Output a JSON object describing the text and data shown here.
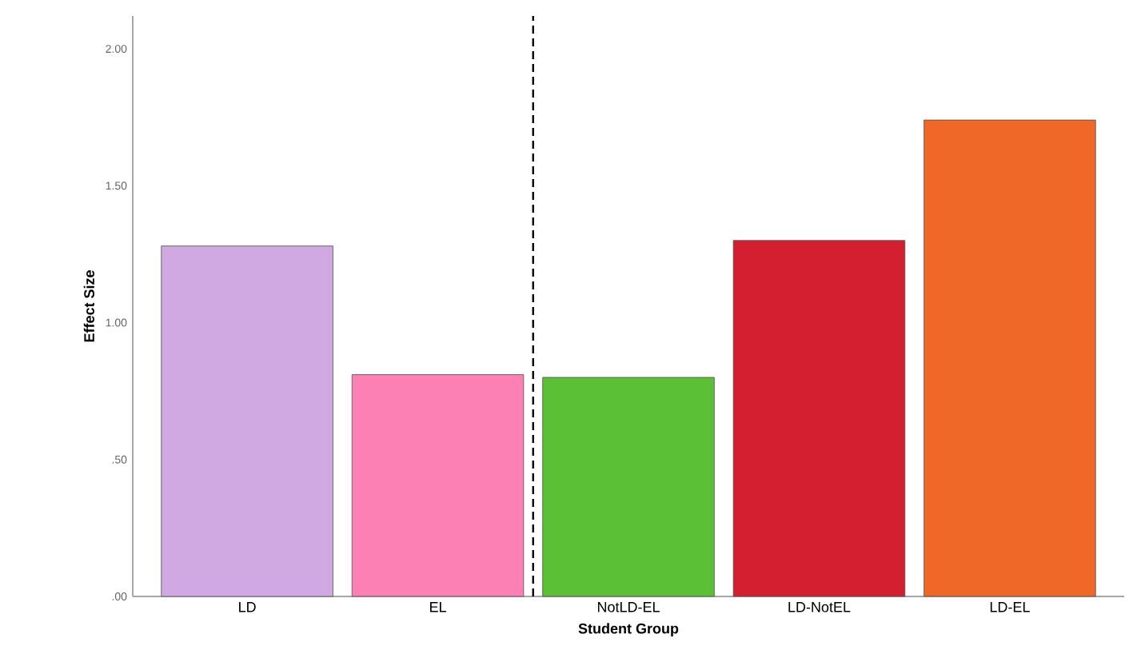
{
  "chart_data": {
    "type": "bar",
    "xlabel": "Student Group",
    "ylabel": "Effect Size",
    "categories": [
      "LD",
      "EL",
      "NotLD-EL",
      "LD-NotEL",
      "LD-EL"
    ],
    "values": [
      1.28,
      0.81,
      0.8,
      1.3,
      1.74
    ],
    "colors": [
      "#d0a9e3",
      "#fc80b4",
      "#5cc036",
      "#d41f31",
      "#f06828"
    ],
    "ylim": [
      0,
      2.12
    ],
    "yticks": [
      {
        "value": 0,
        "label": ".00"
      },
      {
        "value": 0.5,
        "label": ".50"
      },
      {
        "value": 1,
        "label": "1.00"
      },
      {
        "value": 1.5,
        "label": "1.50"
      },
      {
        "value": 2,
        "label": "2.00"
      }
    ]
  }
}
